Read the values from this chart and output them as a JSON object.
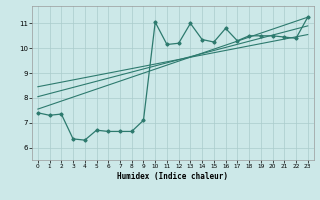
{
  "bg_color": "#cce8e8",
  "grid_color": "#aacccc",
  "line_color": "#2d7a6e",
  "xlabel": "Humidex (Indice chaleur)",
  "xlim": [
    -0.5,
    23.5
  ],
  "ylim": [
    5.5,
    11.7
  ],
  "yticks": [
    6,
    7,
    8,
    9,
    10,
    11
  ],
  "xticks": [
    0,
    1,
    2,
    3,
    4,
    5,
    6,
    7,
    8,
    9,
    10,
    11,
    12,
    13,
    14,
    15,
    16,
    17,
    18,
    19,
    20,
    21,
    22,
    23
  ],
  "series1_x": [
    0,
    1,
    2,
    3,
    4,
    5,
    6,
    7,
    8,
    9,
    10,
    11,
    12,
    13,
    14,
    15,
    16,
    17,
    18,
    19,
    20,
    21,
    22,
    23
  ],
  "series1_y": [
    7.4,
    7.3,
    7.35,
    6.35,
    6.3,
    6.7,
    6.65,
    6.65,
    6.65,
    7.1,
    11.05,
    10.15,
    10.2,
    11.0,
    10.35,
    10.25,
    10.8,
    10.3,
    10.5,
    10.5,
    10.5,
    10.45,
    10.4,
    11.25
  ],
  "line1_x": [
    0,
    23
  ],
  "line1_y": [
    7.55,
    11.25
  ],
  "line2_x": [
    0,
    23
  ],
  "line2_y": [
    8.05,
    10.9
  ],
  "line3_x": [
    0,
    23
  ],
  "line3_y": [
    8.45,
    10.55
  ]
}
